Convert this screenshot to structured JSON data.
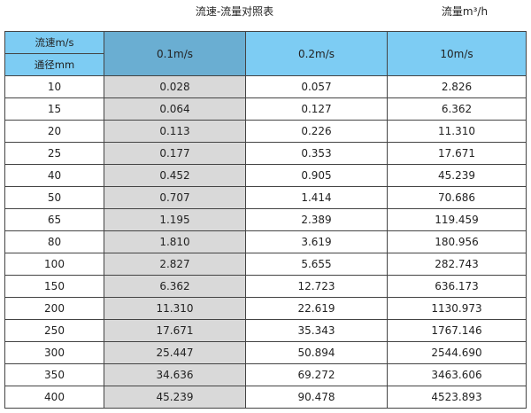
{
  "title": "流速-流量对照表",
  "unit_label": "流量m³/h",
  "colors": {
    "header": "#7dccf3",
    "header_selected": "#6aaed2",
    "shaded_column": "#d9d9d9"
  },
  "table": {
    "corner_top": "流速m/s",
    "corner_bottom": "通径mm",
    "columns": [
      "0.1m/s",
      "0.2m/s",
      "10m/s"
    ],
    "rows": [
      [
        "10",
        "0.028",
        "0.057",
        "2.826"
      ],
      [
        "15",
        "0.064",
        "0.127",
        "6.362"
      ],
      [
        "20",
        "0.113",
        "0.226",
        "11.310"
      ],
      [
        "25",
        "0.177",
        "0.353",
        "17.671"
      ],
      [
        "40",
        "0.452",
        "0.905",
        "45.239"
      ],
      [
        "50",
        "0.707",
        "1.414",
        "70.686"
      ],
      [
        "65",
        "1.195",
        "2.389",
        "119.459"
      ],
      [
        "80",
        "1.810",
        "3.619",
        "180.956"
      ],
      [
        "100",
        "2.827",
        "5.655",
        "282.743"
      ],
      [
        "150",
        "6.362",
        "12.723",
        "636.173"
      ],
      [
        "200",
        "11.310",
        "22.619",
        "1130.973"
      ],
      [
        "250",
        "17.671",
        "35.343",
        "1767.146"
      ],
      [
        "300",
        "25.447",
        "50.894",
        "2544.690"
      ],
      [
        "350",
        "34.636",
        "69.272",
        "3463.606"
      ],
      [
        "400",
        "45.239",
        "90.478",
        "4523.893"
      ]
    ]
  }
}
